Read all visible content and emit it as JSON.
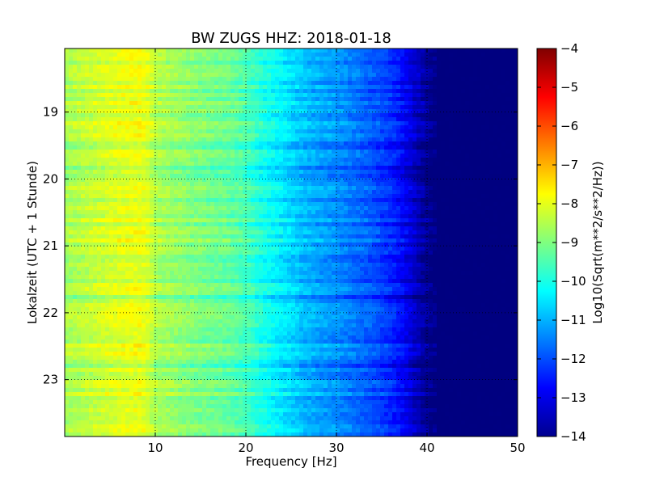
{
  "chart_data": {
    "type": "heatmap",
    "title": "BW ZUGS HHZ: 2018-01-18",
    "xlabel": "Frequency [Hz]",
    "ylabel": "Lokalzeit (UTC + 1 Stunde)",
    "xlim": [
      0,
      50
    ],
    "ylim": [
      23.85,
      18.05
    ],
    "y_axis_inverted": true,
    "x_ticks": [
      10,
      20,
      30,
      40,
      50
    ],
    "x_tick_labels": [
      "10",
      "20",
      "30",
      "40",
      "50"
    ],
    "y_ticks": [
      19,
      20,
      21,
      22,
      23
    ],
    "y_tick_labels": [
      "19",
      "20",
      "21",
      "22",
      "23"
    ],
    "grid": true,
    "colormap": "jet",
    "colorbar": {
      "label": "Log10(Sqrt(m**2/s**2/Hz))",
      "range": [
        -14,
        -4
      ],
      "ticks": [
        -4,
        -5,
        -6,
        -7,
        -8,
        -9,
        -10,
        -11,
        -12,
        -13,
        -14
      ],
      "tick_labels": [
        "−4",
        "−5",
        "−6",
        "−7",
        "−8",
        "−9",
        "−10",
        "−11",
        "−12",
        "−13",
        "−14"
      ]
    },
    "spectrum_profile": {
      "frequency_hz": [
        0,
        2,
        5,
        8,
        9,
        10,
        13,
        15,
        18,
        20,
        22,
        24,
        26,
        28,
        30,
        32,
        34,
        36,
        37,
        38,
        39,
        40,
        41,
        42,
        45,
        50
      ],
      "log10_amplitude": [
        -8.6,
        -8.4,
        -8.1,
        -7.9,
        -8.0,
        -8.5,
        -8.8,
        -9.0,
        -9.2,
        -9.5,
        -10.0,
        -10.4,
        -10.8,
        -11.1,
        -11.3,
        -11.6,
        -11.9,
        -12.3,
        -12.6,
        -13.0,
        -13.4,
        -13.8,
        -14.0,
        -14.0,
        -14.0,
        -14.0
      ]
    }
  }
}
